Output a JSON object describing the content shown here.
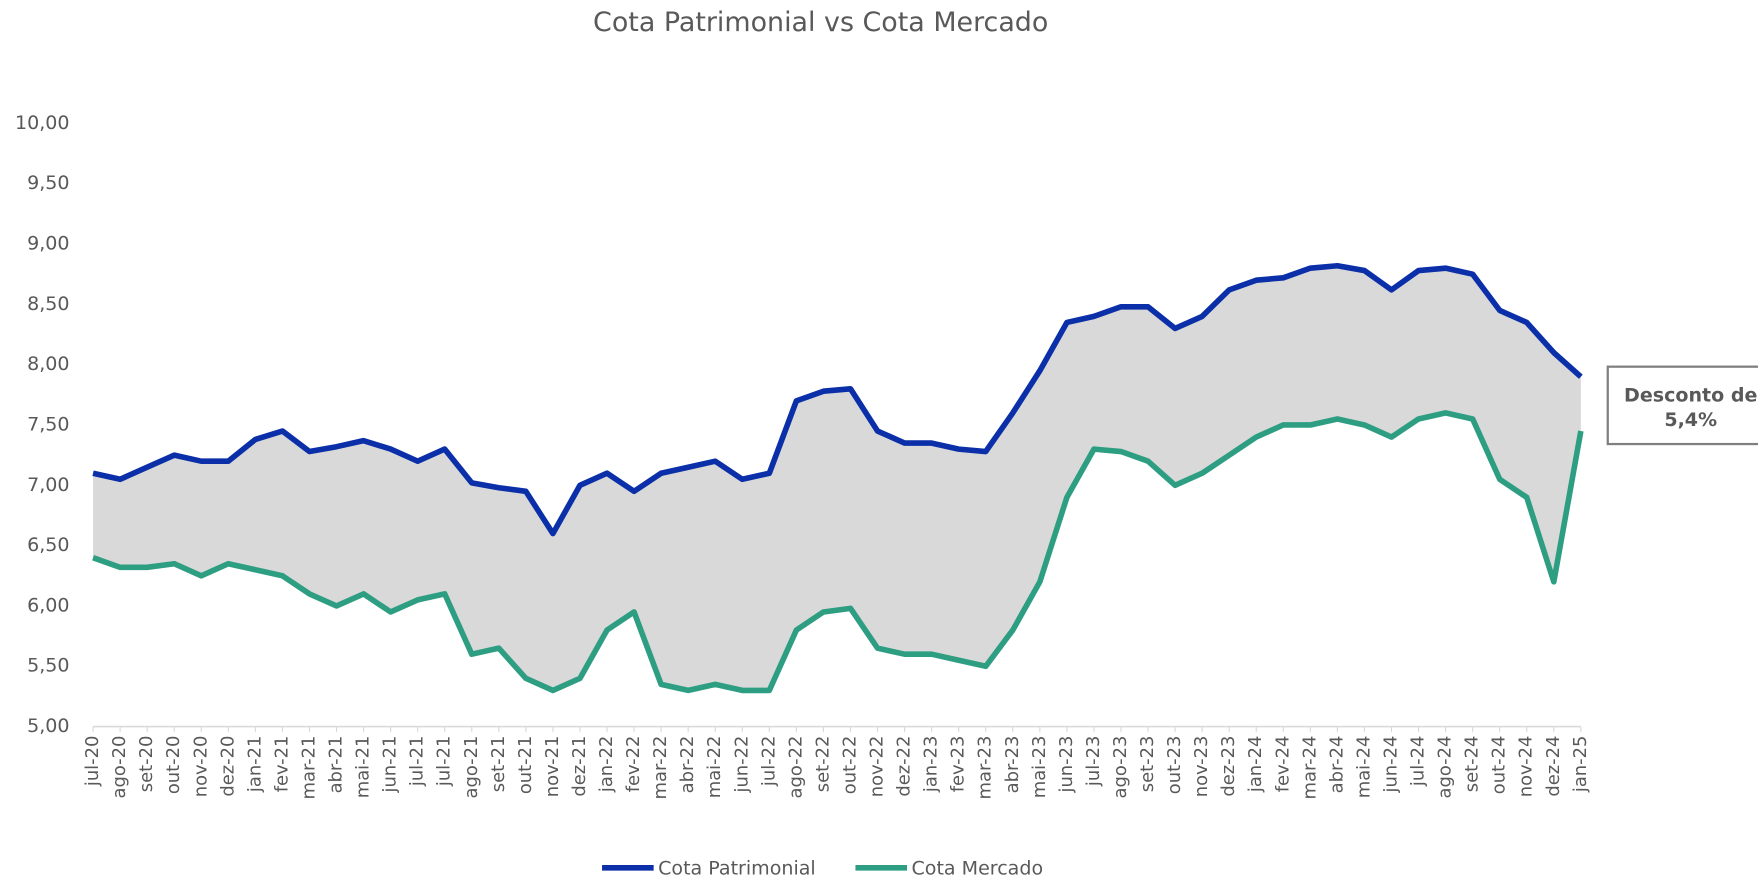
{
  "chart_data": {
    "type": "line",
    "title": "Cota Patrimonial vs Cota Mercado",
    "categories": [
      "jul-20",
      "ago-20",
      "set-20",
      "out-20",
      "nov-20",
      "dez-20",
      "jan-21",
      "fev-21",
      "mar-21",
      "abr-21",
      "mai-21",
      "jun-21",
      "jul-21",
      "jul-21",
      "ago-21",
      "set-21",
      "out-21",
      "nov-21",
      "dez-21",
      "jan-22",
      "fev-22",
      "mar-22",
      "abr-22",
      "mai-22",
      "jun-22",
      "jul-22",
      "ago-22",
      "set-22",
      "out-22",
      "nov-22",
      "dez-22",
      "jan-23",
      "fev-23",
      "mar-23",
      "abr-23",
      "mai-23",
      "jun-23",
      "jul-23",
      "ago-23",
      "set-23",
      "out-23",
      "nov-23",
      "dez-23",
      "jan-24",
      "fev-24",
      "mar-24",
      "abr-24",
      "mai-24",
      "jun-24",
      "jul-24",
      "ago-24",
      "set-24",
      "out-24",
      "nov-24",
      "dez-24",
      "jan-25"
    ],
    "series": [
      {
        "name": "Cota Patrimonial",
        "color": "#0a2fa8",
        "values": [
          7.1,
          7.05,
          7.15,
          7.25,
          7.2,
          7.2,
          7.38,
          7.45,
          7.28,
          7.32,
          7.37,
          7.3,
          7.2,
          7.3,
          7.02,
          6.98,
          6.95,
          6.6,
          7.0,
          7.1,
          6.95,
          7.1,
          7.15,
          7.2,
          7.05,
          7.1,
          7.7,
          7.78,
          7.8,
          7.45,
          7.35,
          7.35,
          7.3,
          7.28,
          7.6,
          7.95,
          8.35,
          8.4,
          8.48,
          8.48,
          8.3,
          8.4,
          8.62,
          8.7,
          8.72,
          8.8,
          8.82,
          8.78,
          8.62,
          8.78,
          8.8,
          8.75,
          8.45,
          8.35,
          8.1,
          7.9
        ]
      },
      {
        "name": "Cota Mercado",
        "color": "#2e9e82",
        "values": [
          6.4,
          6.32,
          6.32,
          6.35,
          6.25,
          6.35,
          6.3,
          6.25,
          6.1,
          6.0,
          6.1,
          5.95,
          6.05,
          6.1,
          5.6,
          5.65,
          5.4,
          5.3,
          5.4,
          5.8,
          5.95,
          5.35,
          5.3,
          5.35,
          5.3,
          5.3,
          5.8,
          5.95,
          5.98,
          5.65,
          5.6,
          5.6,
          5.55,
          5.5,
          5.8,
          6.2,
          6.9,
          7.3,
          7.28,
          7.2,
          7.0,
          7.1,
          7.25,
          7.4,
          7.5,
          7.5,
          7.55,
          7.5,
          7.4,
          7.55,
          7.6,
          7.55,
          7.05,
          6.9,
          6.2,
          7.45
        ]
      }
    ],
    "fill_between": "#d9d9d9",
    "ylim": [
      5,
      10
    ],
    "yticks": [
      {
        "value": 5,
        "label": "5,00"
      },
      {
        "value": 5.5,
        "label": "5,50"
      },
      {
        "value": 6,
        "label": "6,00"
      },
      {
        "value": 6.5,
        "label": "6,50"
      },
      {
        "value": 7,
        "label": "7,00"
      },
      {
        "value": 7.5,
        "label": "7,50"
      },
      {
        "value": 8,
        "label": "8,00"
      },
      {
        "value": 8.5,
        "label": "8,50"
      },
      {
        "value": 9,
        "label": "9,00"
      },
      {
        "value": 9.5,
        "label": "9,50"
      },
      {
        "value": 10,
        "label": "10,00"
      }
    ],
    "annotation": [
      "Desconto de",
      "5,4%"
    ],
    "legend": "bottom"
  }
}
